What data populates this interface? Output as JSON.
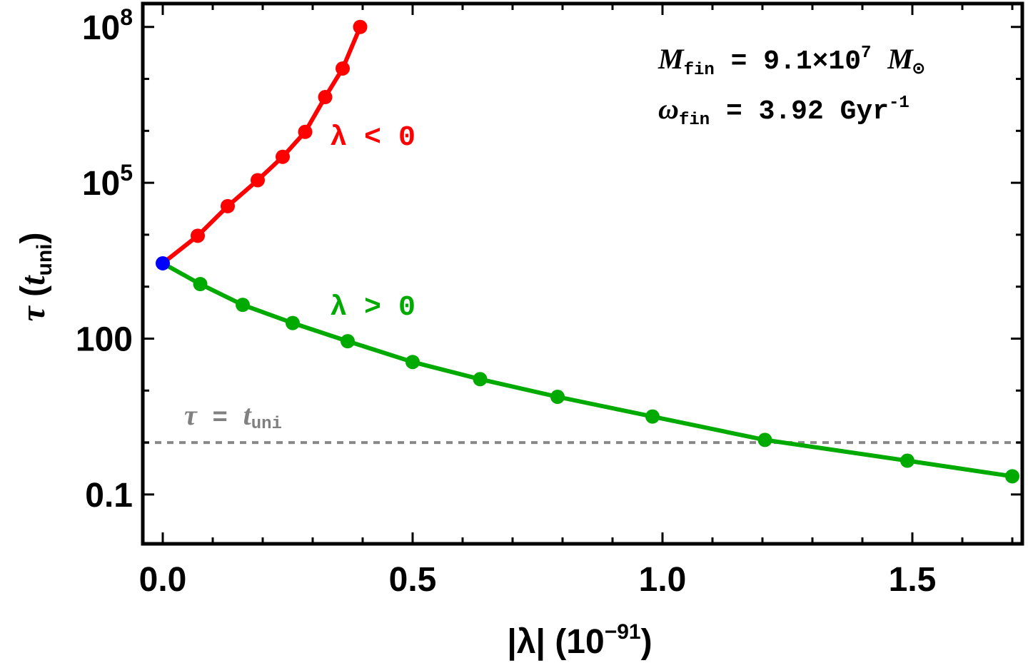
{
  "chart_data": {
    "type": "line",
    "scale": {
      "x": "linear",
      "y": "log10"
    },
    "xlim": [
      -0.04,
      1.72
    ],
    "ylim_log10": [
      -1.95,
      8.45
    ],
    "xticks": [
      {
        "v": 0.0,
        "label": "0.0"
      },
      {
        "v": 0.5,
        "label": "0.5"
      },
      {
        "v": 1.0,
        "label": "1.0"
      },
      {
        "v": 1.5,
        "label": "1.5"
      }
    ],
    "yticks_major": [
      {
        "log": -1,
        "label": "0.1",
        "base": "",
        "exp": ""
      },
      {
        "log": 2,
        "label": "100",
        "base": "",
        "exp": ""
      },
      {
        "log": 5,
        "label": "",
        "base": "10",
        "exp": "5"
      },
      {
        "log": 8,
        "label": "",
        "base": "10",
        "exp": "8"
      }
    ],
    "yticks_minor_log": [
      0,
      1,
      3,
      4,
      6,
      7
    ],
    "xlabel": {
      "main": "|λ| (10",
      "exp": "−91",
      "close": ")"
    },
    "ylabel": {
      "tau": "τ",
      "open": "(",
      "t": "t",
      "sub": "uni",
      "close": ")"
    },
    "series": [
      {
        "name": "λ < 0",
        "color": "#ff0000",
        "x": [
          0.0,
          0.07,
          0.13,
          0.19,
          0.24,
          0.285,
          0.325,
          0.36,
          0.395
        ],
        "log_y": [
          3.45,
          3.98,
          4.55,
          5.05,
          5.5,
          5.98,
          6.65,
          7.2,
          8.0
        ]
      },
      {
        "name": "λ > 0",
        "color": "#00aa00",
        "x": [
          0.0,
          0.075,
          0.16,
          0.26,
          0.37,
          0.5,
          0.635,
          0.79,
          0.98,
          1.205,
          1.49,
          1.7
        ],
        "log_y": [
          3.45,
          3.05,
          2.65,
          2.3,
          1.95,
          1.55,
          1.22,
          0.88,
          0.5,
          0.05,
          -0.35,
          -0.65
        ]
      }
    ],
    "origin_point": {
      "x": 0.0,
      "log_y": 3.45,
      "color": "#0000ff"
    },
    "reference_line": {
      "log_y": 0.0,
      "color": "#888888",
      "style": "dotted"
    },
    "annotations": {
      "neg_label": "λ < 0",
      "pos_label": "λ > 0",
      "ref_label": {
        "tau": "τ",
        "eq": " = ",
        "t": "t",
        "sub": "uni"
      },
      "mass": {
        "sym": "M",
        "sub": "fin",
        "eq": " = 9.1×10",
        "exp": "7",
        "unit": "M",
        "unit_sub": "⊙"
      },
      "omega": {
        "sym": "ω",
        "sub": "fin",
        "eq": " = 3.92 Gyr",
        "exp": "-1"
      }
    }
  }
}
